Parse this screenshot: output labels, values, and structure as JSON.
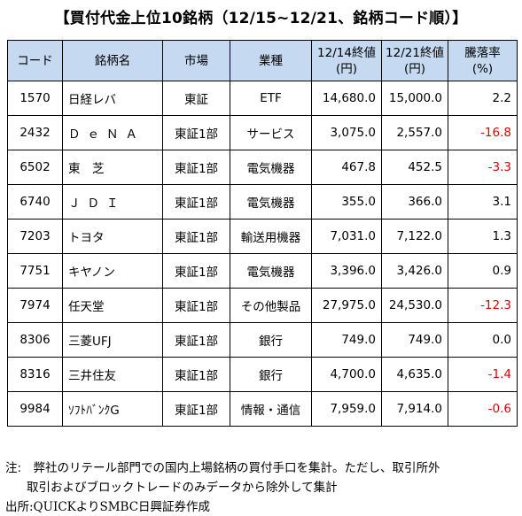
{
  "title": "【買付代金上位10銘柄（12/15~12/21、銘柄コード順）】",
  "table": {
    "headers": {
      "code": "コード",
      "name": "銘柄名",
      "market": "市場",
      "sector": "業種",
      "price1214_line1": "12/14終値",
      "price1214_line2": "(円)",
      "price1221_line1": "12/21終値",
      "price1221_line2": "(円)",
      "change_line1": "騰落率",
      "change_line2": "(%)"
    },
    "rows": [
      {
        "code": "1570",
        "name": "日経レバ",
        "market": "東証",
        "sector": "ETF",
        "price1214": "14,680.0",
        "price1221": "15,000.0",
        "change": "2.2"
      },
      {
        "code": "2432",
        "name": "ＤｅＮＡ",
        "market": "東証1部",
        "sector": "サービス",
        "price1214": "3,075.0",
        "price1221": "2,557.0",
        "change": "-16.8"
      },
      {
        "code": "6502",
        "name": "東　芝",
        "market": "東証1部",
        "sector": "電気機器",
        "price1214": "467.8",
        "price1221": "452.5",
        "change": "-3.3"
      },
      {
        "code": "6740",
        "name": "ＪＤＩ",
        "market": "東証1部",
        "sector": "電気機器",
        "price1214": "355.0",
        "price1221": "366.0",
        "change": "3.1"
      },
      {
        "code": "7203",
        "name": "トヨタ",
        "market": "東証1部",
        "sector": "輸送用機器",
        "price1214": "7,031.0",
        "price1221": "7,122.0",
        "change": "1.3"
      },
      {
        "code": "7751",
        "name": "キヤノン",
        "market": "東証1部",
        "sector": "電気機器",
        "price1214": "3,396.0",
        "price1221": "3,426.0",
        "change": "0.9"
      },
      {
        "code": "7974",
        "name": "任天堂",
        "market": "東証1部",
        "sector": "その他製品",
        "price1214": "27,975.0",
        "price1221": "24,530.0",
        "change": "-12.3"
      },
      {
        "code": "8306",
        "name": "三菱UFJ",
        "market": "東証1部",
        "sector": "銀行",
        "price1214": "749.0",
        "price1221": "749.0",
        "change": "0.0"
      },
      {
        "code": "8316",
        "name": "三井住友",
        "market": "東証1部",
        "sector": "銀行",
        "price1214": "4,700.0",
        "price1221": "4,635.0",
        "change": "-1.4"
      },
      {
        "code": "9984",
        "name": "ｿﾌﾄﾊﾞﾝｸG",
        "market": "東証1部",
        "sector": "情報・通信",
        "price1214": "7,959.0",
        "price1221": "7,914.0",
        "change": "-0.6"
      }
    ]
  },
  "notes": {
    "line1": "注:　弊社のリテール部門での国内上場銘柄の買付手口を集計。ただし、取引所外",
    "line2": "取引およびブロックトレードのみデータから除外して集計",
    "source": "出所:QUICKよりSMBC日興証券作成"
  },
  "colors": {
    "header_bg": "#c5d9f1",
    "negative": "#e00000"
  }
}
